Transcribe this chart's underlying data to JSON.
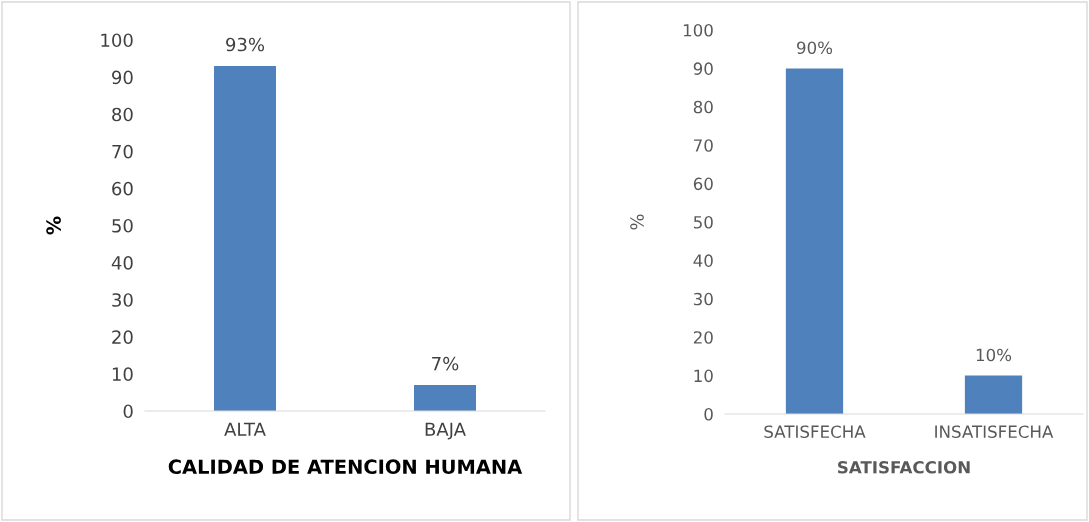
{
  "chart_data": [
    {
      "type": "bar",
      "categories": [
        "ALTA",
        "BAJA"
      ],
      "values": [
        93,
        7
      ],
      "value_labels": [
        "93%",
        "7%"
      ],
      "color": "#4f81bd",
      "ylabel": "%",
      "xlabel": "CALIDAD DE ATENCION HUMANA",
      "ylim": [
        0,
        100
      ],
      "yticks": [
        0,
        10,
        20,
        30,
        40,
        50,
        60,
        70,
        80,
        90,
        100
      ],
      "grid": false,
      "legend": false
    },
    {
      "type": "bar",
      "categories": [
        "SATISFECHA",
        "INSATISFECHA"
      ],
      "values": [
        90,
        10
      ],
      "value_labels": [
        "90%",
        "10%"
      ],
      "color": "#4f81bd",
      "ylabel": "%",
      "xlabel": "SATISFACCION",
      "ylim": [
        0,
        100
      ],
      "yticks": [
        0,
        10,
        20,
        30,
        40,
        50,
        60,
        70,
        80,
        90,
        100
      ],
      "grid": false,
      "legend": false
    }
  ]
}
